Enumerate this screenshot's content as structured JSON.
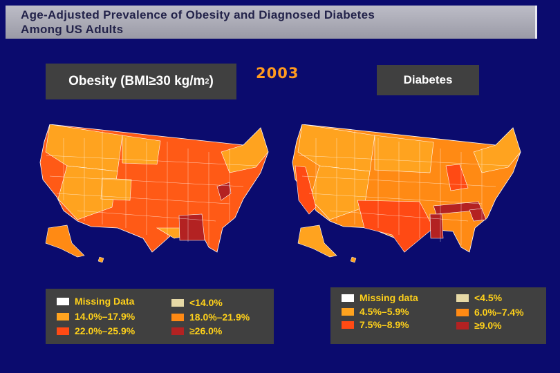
{
  "title": {
    "line1": "Age-Adjusted Prevalence of Obesity and Diagnosed Diabetes",
    "line2": "Among US Adults"
  },
  "year": "2003",
  "obesity": {
    "label": "Obesity (BMI≥30 kg/m",
    "label_sup": "2",
    "label_end": ")",
    "legend": [
      {
        "text": "Missing Data",
        "color": "#ffffff"
      },
      {
        "text": "<14.0%",
        "color": "#e6d9a6"
      },
      {
        "text": "14.0%–17.9%",
        "color": "#ffa31f"
      },
      {
        "text": "18.0%–21.9%",
        "color": "#ff8a14"
      },
      {
        "text": "22.0%–25.9%",
        "color": "#ff4a14"
      },
      {
        "text": "≥26.0%",
        "color": "#b32222"
      }
    ]
  },
  "diabetes": {
    "label": "Diabetes",
    "legend": [
      {
        "text": "Missing data",
        "color": "#ffffff"
      },
      {
        "text": "<4.5%",
        "color": "#e6d9a6"
      },
      {
        "text": "4.5%–5.9%",
        "color": "#ffa31f"
      },
      {
        "text": "6.0%–7.4%",
        "color": "#ff8a14"
      },
      {
        "text": "7.5%–8.9%",
        "color": "#ff4a14"
      },
      {
        "text": "≥9.0%",
        "color": "#b32222"
      }
    ]
  }
}
